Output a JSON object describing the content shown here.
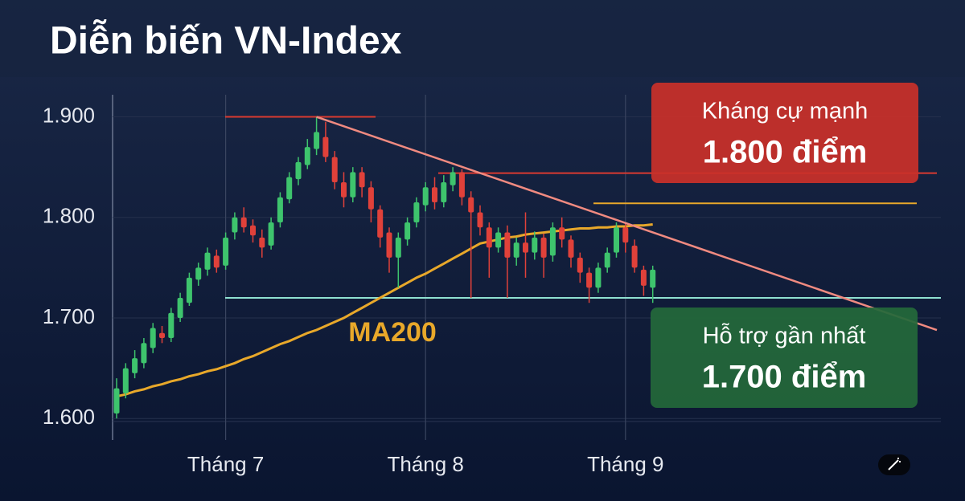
{
  "chart_data": {
    "type": "candlestick",
    "title": "Diễn biến VN-Index",
    "categories": [
      null,
      null,
      null,
      null,
      null,
      null,
      null,
      null,
      null,
      null,
      null,
      null,
      "Tháng 7",
      null,
      null,
      null,
      null,
      null,
      null,
      null,
      null,
      null,
      null,
      null,
      null,
      null,
      null,
      null,
      null,
      null,
      null,
      null,
      null,
      null,
      "Tháng 8",
      null,
      null,
      null,
      null,
      null,
      null,
      null,
      null,
      null,
      null,
      null,
      null,
      null,
      null,
      null,
      null,
      null,
      null,
      null,
      null,
      null,
      "Tháng 9",
      null,
      null,
      null
    ],
    "open": [
      1605,
      1625,
      1645,
      1655,
      1670,
      1685,
      1680,
      1700,
      1715,
      1738,
      1748,
      1762,
      1752,
      1785,
      1800,
      1792,
      1780,
      1772,
      1795,
      1818,
      1838,
      1852,
      1868,
      1880,
      1860,
      1835,
      1820,
      1845,
      1830,
      1808,
      1785,
      1760,
      1778,
      1795,
      1812,
      1830,
      1815,
      1832,
      1845,
      1820,
      1805,
      1790,
      1770,
      1785,
      1760,
      1775,
      1765,
      1780,
      1762,
      1790,
      1778,
      1760,
      1745,
      1730,
      1750,
      1765,
      1790,
      1772,
      1748,
      1730
    ],
    "high": [
      1640,
      1655,
      1668,
      1680,
      1695,
      1692,
      1710,
      1725,
      1745,
      1755,
      1770,
      1768,
      1785,
      1805,
      1810,
      1798,
      1788,
      1800,
      1825,
      1845,
      1860,
      1878,
      1900,
      1895,
      1866,
      1845,
      1850,
      1850,
      1836,
      1812,
      1790,
      1785,
      1800,
      1820,
      1835,
      1840,
      1842,
      1850,
      1848,
      1826,
      1812,
      1795,
      1790,
      1792,
      1780,
      1805,
      1786,
      1784,
      1795,
      1800,
      1782,
      1765,
      1750,
      1755,
      1770,
      1795,
      1795,
      1778,
      1752,
      1752
    ],
    "low": [
      1600,
      1620,
      1640,
      1650,
      1665,
      1675,
      1676,
      1696,
      1712,
      1732,
      1742,
      1745,
      1748,
      1778,
      1785,
      1775,
      1760,
      1768,
      1790,
      1814,
      1832,
      1848,
      1862,
      1855,
      1828,
      1810,
      1815,
      1820,
      1795,
      1770,
      1745,
      1730,
      1772,
      1790,
      1806,
      1808,
      1810,
      1826,
      1812,
      1720,
      1782,
      1740,
      1765,
      1720,
      1752,
      1740,
      1758,
      1740,
      1756,
      1770,
      1750,
      1735,
      1715,
      1725,
      1745,
      1760,
      1765,
      1745,
      1722,
      1715
    ],
    "close": [
      1630,
      1650,
      1660,
      1675,
      1690,
      1680,
      1705,
      1720,
      1740,
      1750,
      1765,
      1750,
      1780,
      1800,
      1790,
      1782,
      1770,
      1795,
      1820,
      1840,
      1855,
      1870,
      1885,
      1860,
      1835,
      1820,
      1845,
      1830,
      1808,
      1780,
      1760,
      1780,
      1795,
      1815,
      1830,
      1815,
      1835,
      1845,
      1820,
      1805,
      1790,
      1770,
      1785,
      1760,
      1775,
      1765,
      1780,
      1760,
      1790,
      1778,
      1760,
      1745,
      1730,
      1750,
      1765,
      1790,
      1775,
      1750,
      1732,
      1748
    ],
    "up_color": "#3ec46d",
    "down_color": "#e0413a",
    "ma200": {
      "name": "MA200",
      "color": "#e8a82a",
      "values": [
        1622,
        1624,
        1627,
        1629,
        1632,
        1634,
        1637,
        1639,
        1642,
        1644,
        1647,
        1649,
        1652,
        1655,
        1659,
        1662,
        1666,
        1670,
        1674,
        1677,
        1681,
        1685,
        1688,
        1692,
        1696,
        1700,
        1705,
        1710,
        1715,
        1720,
        1725,
        1730,
        1735,
        1740,
        1744,
        1749,
        1754,
        1759,
        1764,
        1769,
        1774,
        1776,
        1778,
        1780,
        1781,
        1783,
        1784,
        1785,
        1786,
        1787,
        1788,
        1789,
        1789,
        1790,
        1790,
        1791,
        1791,
        1792,
        1792,
        1793
      ]
    },
    "ylim": [
      1585,
      1922
    ],
    "yticks": [
      {
        "value": 1600,
        "label": "1.600"
      },
      {
        "value": 1700,
        "label": "1.700"
      },
      {
        "value": 1800,
        "label": "1.800"
      },
      {
        "value": 1900,
        "label": "1.900"
      }
    ],
    "grid": true,
    "peak_line": {
      "value": 1900,
      "color": "#d93a30"
    },
    "resistance_line": {
      "value": 1844,
      "color": "#d93a30"
    },
    "ma_cap_line": {
      "value": 1814,
      "color": "#e8a82a"
    },
    "support_line": {
      "value": 1720,
      "color": "#8fe0d0"
    },
    "trend_line": {
      "values": [
        1900,
        1688
      ],
      "color": "#f08a80"
    },
    "resistance_box": {
      "title": "Kháng cự mạnh",
      "label": "1.800 điểm",
      "color": "#c9302a"
    },
    "support_box": {
      "title": "Hỗ trợ gần nhất",
      "label": "1.700 điểm",
      "color": "#24683a"
    }
  }
}
